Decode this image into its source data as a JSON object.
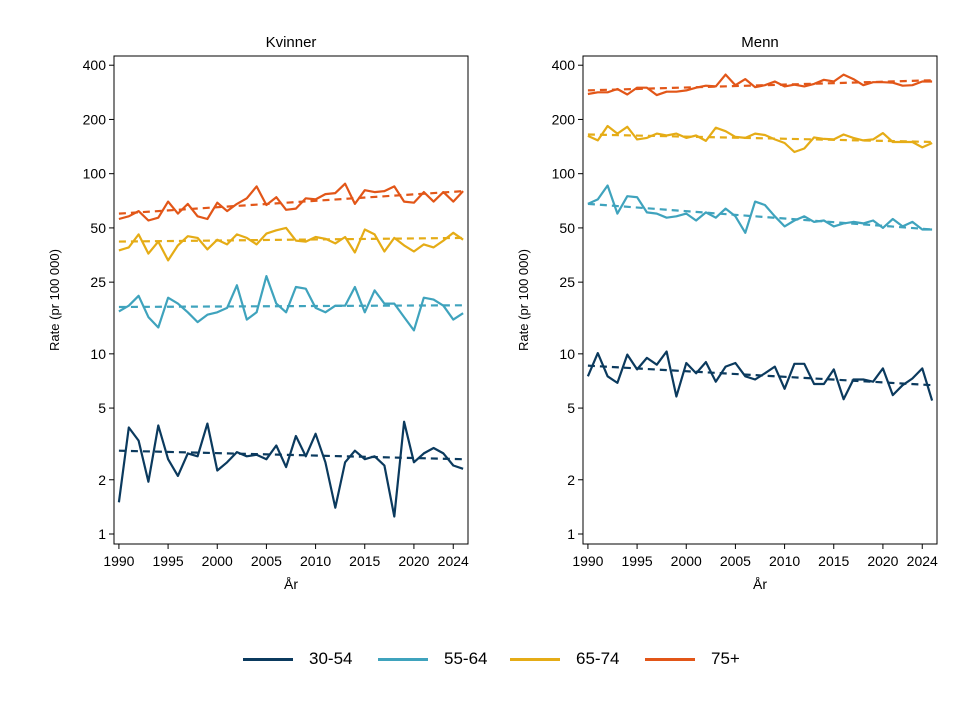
{
  "chart_data": [
    {
      "type": "line",
      "title": "Kvinner",
      "xlabel": "År",
      "ylabel": "Rate (pr 100 000)",
      "yscale": "log",
      "ylim": [
        0.88,
        450
      ],
      "xlim": [
        1989.5,
        2025.5
      ],
      "xticks": [
        1990,
        1995,
        2000,
        2005,
        2010,
        2015,
        2020,
        2024
      ],
      "yticks": [
        1,
        2,
        5,
        10,
        25,
        50,
        100,
        200,
        400
      ],
      "x": [
        1990,
        1991,
        1992,
        1993,
        1994,
        1995,
        1996,
        1997,
        1998,
        1999,
        2000,
        2001,
        2002,
        2003,
        2004,
        2005,
        2006,
        2007,
        2008,
        2009,
        2010,
        2011,
        2012,
        2013,
        2014,
        2015,
        2016,
        2017,
        2018,
        2019,
        2020,
        2021,
        2022,
        2023,
        2024,
        2025
      ],
      "series": [
        {
          "name": "30-54",
          "color": "#0b3a5e",
          "values": [
            1.5,
            3.9,
            3.3,
            1.95,
            4.0,
            2.6,
            2.1,
            2.8,
            2.7,
            4.1,
            2.25,
            2.5,
            2.85,
            2.7,
            2.75,
            2.6,
            3.1,
            2.35,
            3.5,
            2.7,
            3.6,
            2.5,
            1.4,
            2.5,
            2.9,
            2.6,
            2.7,
            2.4,
            1.25,
            4.2,
            2.5,
            2.8,
            3.0,
            2.8,
            2.4,
            2.3
          ],
          "trend": [
            2.9,
            2.6
          ]
        },
        {
          "name": "55-64",
          "color": "#3fa3bd",
          "values": [
            17.2,
            18.5,
            21.0,
            16.0,
            14.0,
            20.5,
            19.0,
            17.0,
            15.0,
            16.5,
            17.0,
            18.0,
            24.0,
            15.5,
            17.0,
            27.0,
            19.0,
            17.0,
            23.5,
            23.0,
            18.0,
            17.0,
            18.5,
            18.5,
            23.5,
            17.0,
            22.5,
            19.0,
            19.0,
            16.0,
            13.5,
            20.5,
            20.0,
            18.5,
            15.5,
            16.8
          ],
          "trend": [
            18.2,
            18.6
          ]
        },
        {
          "name": "65-74",
          "color": "#e5ac16",
          "values": [
            37.5,
            39.0,
            46.0,
            36.0,
            42.0,
            33.0,
            40.0,
            45.0,
            44.0,
            38.0,
            43.0,
            40.5,
            46.0,
            44.0,
            40.5,
            46.5,
            48.5,
            50.0,
            42.5,
            42.0,
            44.5,
            43.5,
            41.0,
            44.5,
            36.5,
            49.0,
            46.0,
            37.0,
            44.0,
            40.0,
            37.0,
            40.5,
            39.0,
            42.5,
            47.0,
            43.0
          ],
          "trend": [
            42.0,
            44.0
          ]
        },
        {
          "name": "75+",
          "color": "#e25618",
          "values": [
            56,
            58,
            62,
            55,
            57,
            70,
            60,
            68,
            58,
            56,
            69,
            62,
            68,
            73,
            85,
            67,
            74,
            63,
            64,
            73,
            72,
            77,
            78,
            88,
            68,
            81,
            79,
            80,
            85,
            70,
            69,
            79,
            70,
            79,
            70,
            80
          ],
          "trend": [
            60,
            80
          ]
        }
      ]
    },
    {
      "type": "line",
      "title": "Menn",
      "xlabel": "År",
      "ylabel": "Rate (pr 100 000)",
      "yscale": "log",
      "ylim": [
        0.88,
        450
      ],
      "xlim": [
        1989.5,
        2025.5
      ],
      "xticks": [
        1990,
        1995,
        2000,
        2005,
        2010,
        2015,
        2020,
        2024
      ],
      "yticks": [
        1,
        2,
        5,
        10,
        25,
        50,
        100,
        200,
        400
      ],
      "x": [
        1990,
        1991,
        1992,
        1993,
        1994,
        1995,
        1996,
        1997,
        1998,
        1999,
        2000,
        2001,
        2002,
        2003,
        2004,
        2005,
        2006,
        2007,
        2008,
        2009,
        2010,
        2011,
        2012,
        2013,
        2014,
        2015,
        2016,
        2017,
        2018,
        2019,
        2020,
        2021,
        2022,
        2023,
        2024,
        2025
      ],
      "series": [
        {
          "name": "30-54",
          "color": "#0b3a5e",
          "values": [
            7.5,
            10.1,
            7.5,
            6.9,
            9.9,
            8.2,
            9.5,
            8.7,
            10.3,
            5.8,
            8.9,
            7.8,
            9.0,
            7.0,
            8.5,
            8.9,
            7.5,
            7.2,
            7.8,
            8.5,
            6.4,
            8.8,
            8.8,
            6.8,
            6.8,
            8.2,
            5.6,
            7.2,
            7.2,
            7.0,
            8.3,
            5.9,
            6.7,
            7.3,
            8.3,
            5.5
          ],
          "trend": [
            8.6,
            6.7
          ]
        },
        {
          "name": "55-64",
          "color": "#3fa3bd",
          "values": [
            68,
            72,
            86,
            60,
            75,
            74,
            61,
            60,
            57,
            58,
            60,
            55,
            61,
            57,
            64,
            58,
            47,
            70,
            67,
            58,
            51,
            55,
            58,
            54,
            55,
            51,
            53,
            54,
            53,
            55,
            50,
            56,
            51,
            54,
            49,
            49
          ],
          "trend": [
            68,
            49
          ]
        },
        {
          "name": "65-74",
          "color": "#e5ac16",
          "values": [
            162,
            153,
            184,
            167,
            182,
            155,
            158,
            167,
            163,
            167,
            158,
            163,
            152,
            180,
            172,
            160,
            158,
            167,
            164,
            155,
            148,
            132,
            138,
            159,
            156,
            155,
            165,
            158,
            153,
            155,
            168,
            150,
            150,
            150,
            140,
            148
          ],
          "trend": [
            165,
            150
          ]
        },
        {
          "name": "75+",
          "color": "#e25618",
          "values": [
            277,
            283,
            283,
            295,
            275,
            300,
            300,
            273,
            285,
            285,
            290,
            300,
            308,
            305,
            355,
            310,
            335,
            302,
            310,
            325,
            305,
            312,
            305,
            315,
            332,
            325,
            355,
            335,
            310,
            322,
            322,
            320,
            308,
            310,
            325,
            325
          ],
          "trend": [
            290,
            330
          ]
        }
      ]
    }
  ],
  "legend": {
    "items": [
      {
        "label": "30-54",
        "color": "#0b3a5e"
      },
      {
        "label": "55-64",
        "color": "#3fa3bd"
      },
      {
        "label": "65-74",
        "color": "#e5ac16"
      },
      {
        "label": "75+",
        "color": "#e25618"
      }
    ]
  }
}
